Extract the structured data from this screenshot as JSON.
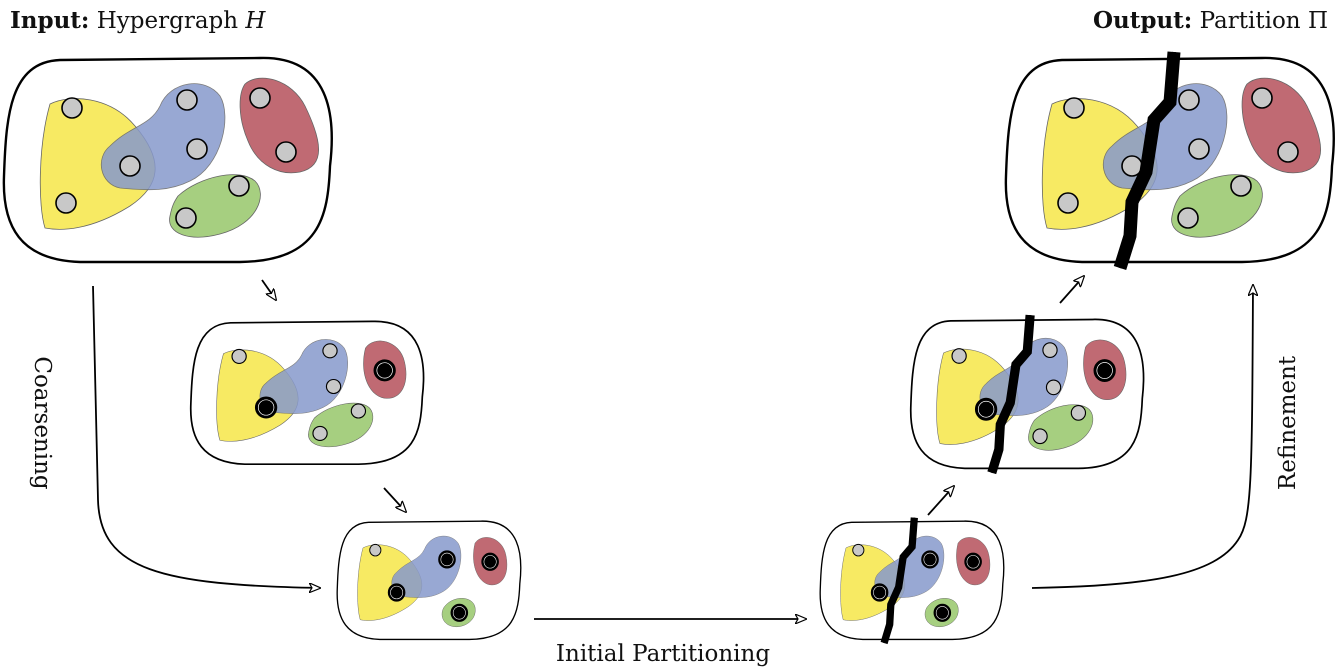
{
  "labels": {
    "input_bold": "Input:",
    "input_text": "Hypergraph",
    "input_symbol": "H",
    "output_bold": "Output:",
    "output_text": "Partition",
    "output_symbol": "Π",
    "coarsening": "Coarsening",
    "refinement": "Refinement",
    "initial_partitioning": "Initial Partitioning"
  },
  "colors": {
    "yellow_hyperedge": "#f7ea63",
    "blue_hyperedge": "#8799cc",
    "red_hyperedge": "#c06a73",
    "green_hyperedge": "#a6cf80",
    "vertex_fill": "#c8c8c8",
    "contracted_vertex_fill": "#000000"
  },
  "diagram": {
    "stages": [
      "input-hypergraph",
      "coarsened-level-1",
      "coarsest-hypergraph",
      "initial-partition",
      "refined-level-1",
      "output-partition"
    ],
    "vertices_per_hypergraph": 9
  }
}
